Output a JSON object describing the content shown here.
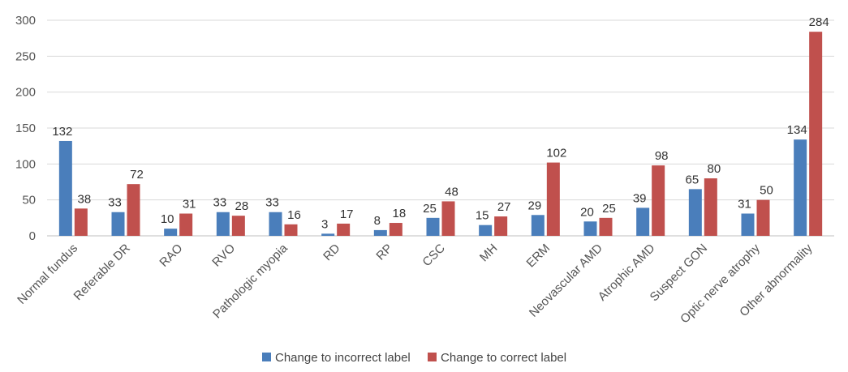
{
  "chart_data": {
    "type": "bar",
    "categories": [
      "Normal fundus",
      "Referable DR",
      "RAO",
      "RVO",
      "Pathologic myopia",
      "RD",
      "RP",
      "CSC",
      "MH",
      "ERM",
      "Neovascular AMD",
      "Atrophic AMD",
      "Suspect GON",
      "Optic nerve atrophy",
      "Other abnormality"
    ],
    "series": [
      {
        "name": "Change to incorrect label",
        "color": "#4a7ebb",
        "values": [
          132,
          33,
          10,
          33,
          33,
          3,
          8,
          25,
          15,
          29,
          20,
          39,
          65,
          31,
          134
        ]
      },
      {
        "name": "Change to correct label",
        "color": "#c0504d",
        "values": [
          38,
          72,
          31,
          28,
          16,
          17,
          18,
          48,
          27,
          102,
          25,
          98,
          80,
          50,
          284
        ]
      }
    ],
    "ylim": [
      0,
      300
    ],
    "yticks": [
      0,
      50,
      100,
      150,
      200,
      250,
      300
    ],
    "grid": true,
    "legend": "bottom",
    "title": "",
    "xlabel": "",
    "ylabel": ""
  }
}
